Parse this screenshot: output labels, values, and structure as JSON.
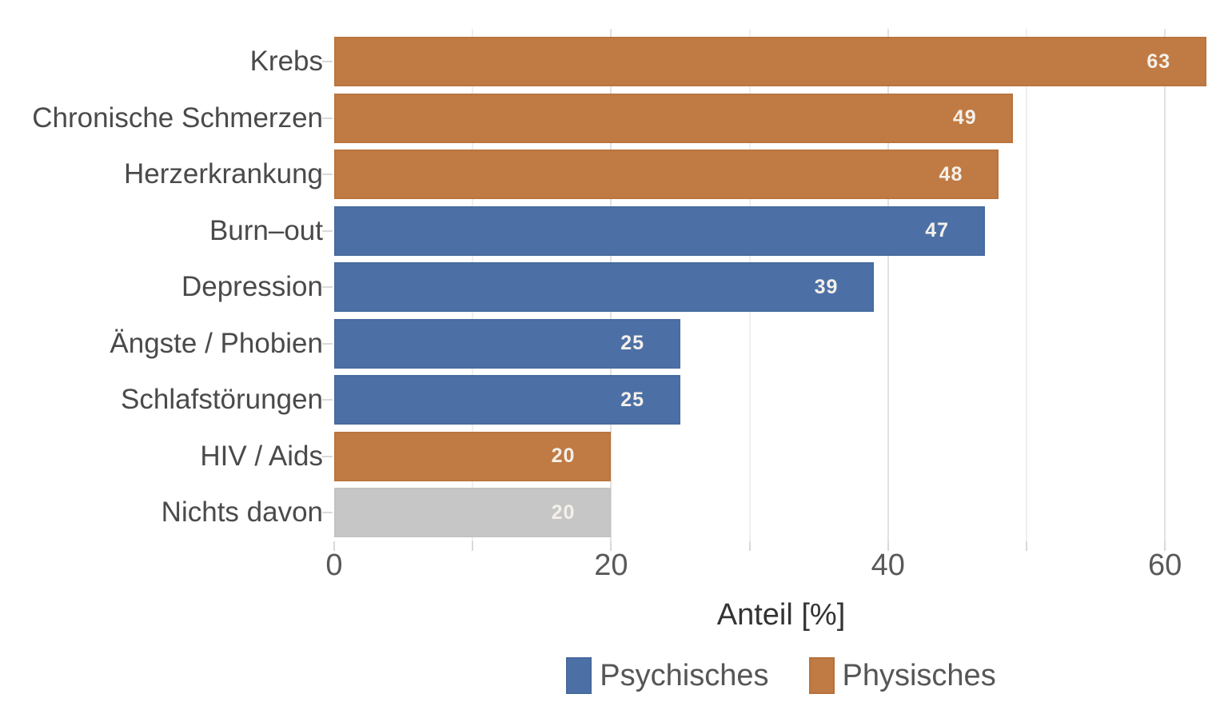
{
  "chart_data": {
    "type": "bar",
    "orientation": "horizontal",
    "xlabel": "Anteil [%]",
    "xlim": [
      0,
      64
    ],
    "x_major_ticks": [
      0,
      20,
      40,
      60
    ],
    "x_minor_ticks": [
      10,
      30,
      50
    ],
    "x_tick_labels": [
      "0",
      "20",
      "40",
      "60"
    ],
    "grid": "vertical, light gray, majors at 20/40/60 and minors at 10/30/50",
    "legend_position": "bottom center",
    "categories": [
      "Krebs",
      "Chronische Schmerzen",
      "Herzerkrankung",
      "Burn–out",
      "Depression",
      "Ängste / Phobien",
      "Schlafstörungen",
      "HIV / Aids",
      "Nichts davon"
    ],
    "values": [
      63,
      49,
      48,
      47,
      39,
      25,
      25,
      20,
      20
    ],
    "bars": [
      {
        "label": "Krebs",
        "value": 63,
        "series": "Physisches"
      },
      {
        "label": "Chronische Schmerzen",
        "value": 49,
        "series": "Physisches"
      },
      {
        "label": "Herzerkrankung",
        "value": 48,
        "series": "Physisches"
      },
      {
        "label": "Burn–out",
        "value": 47,
        "series": "Psychisches"
      },
      {
        "label": "Depression",
        "value": 39,
        "series": "Psychisches"
      },
      {
        "label": "Ängste / Phobien",
        "value": 25,
        "series": "Psychisches"
      },
      {
        "label": "Schlafstörungen",
        "value": 25,
        "series": "Psychisches"
      },
      {
        "label": "HIV / Aids",
        "value": 20,
        "series": "Physisches"
      },
      {
        "label": "Nichts davon",
        "value": 20,
        "series": "none"
      }
    ],
    "colors": {
      "Psychisches": {
        "fill": "#4c70a6",
        "border": "#3e5d8c"
      },
      "Physisches": {
        "fill": "#c07a43",
        "border": "#a5632f"
      },
      "none": {
        "fill": "#c6c6c6",
        "border": "#b2b2b2"
      }
    },
    "legend": [
      {
        "label": "Psychisches",
        "series": "Psychisches"
      },
      {
        "label": "Physisches",
        "series": "Physisches"
      }
    ]
  }
}
